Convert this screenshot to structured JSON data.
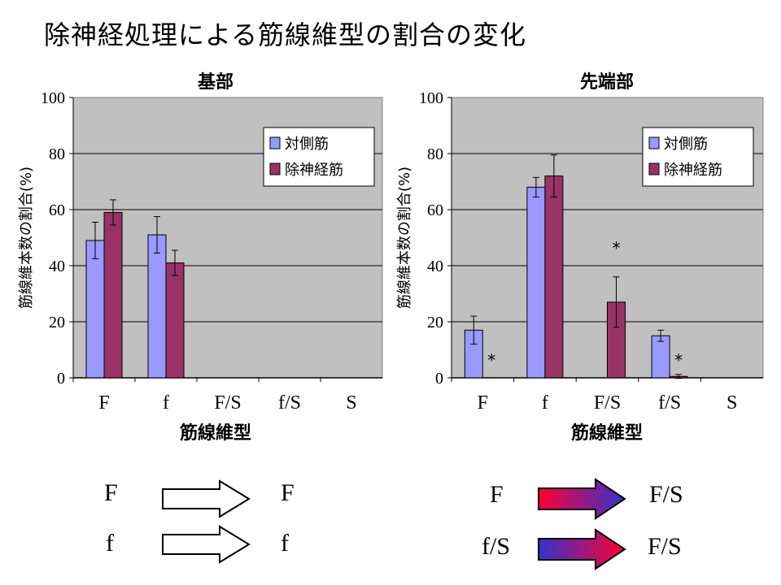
{
  "title": "除神経処理による筋線維型の割合の変化",
  "colors": {
    "contra": "#9999ff",
    "denerv": "#993366",
    "plot_bg": "#c0c0c0",
    "grid": "#000000"
  },
  "chart_data": [
    {
      "type": "bar",
      "title": "基部",
      "xlabel": "筋線維型",
      "ylabel": "筋線維本数の割合(%)",
      "ylim": [
        0,
        100
      ],
      "yticks": [
        "0",
        "20",
        "40",
        "60",
        "80",
        "100"
      ],
      "categories": [
        "F",
        "f",
        "F/S",
        "f/S",
        "S"
      ],
      "legend_position": "top-right",
      "series": [
        {
          "name": "対側筋",
          "color_key": "contra",
          "values": [
            49,
            51,
            0,
            0,
            0
          ],
          "err": [
            6.5,
            6.5,
            0,
            0,
            0
          ]
        },
        {
          "name": "除神経筋",
          "color_key": "denerv",
          "values": [
            59,
            41,
            0,
            0,
            0
          ],
          "err": [
            4.5,
            4.5,
            0,
            0,
            0
          ]
        }
      ],
      "annotations": []
    },
    {
      "type": "bar",
      "title": "先端部",
      "xlabel": "筋線維型",
      "ylabel": "筋線維本数の割合(%)",
      "ylim": [
        0,
        100
      ],
      "yticks": [
        "0",
        "20",
        "40",
        "60",
        "80",
        "100"
      ],
      "categories": [
        "F",
        "f",
        "F/S",
        "f/S",
        "S"
      ],
      "legend_position": "top-right",
      "series": [
        {
          "name": "対側筋",
          "color_key": "contra",
          "values": [
            17,
            68,
            0,
            15,
            0
          ],
          "err": [
            5,
            3.5,
            0,
            2,
            0
          ]
        },
        {
          "name": "除神経筋",
          "color_key": "denerv",
          "values": [
            0,
            72,
            27,
            0.5,
            0
          ],
          "err": [
            0,
            7.5,
            9,
            0.7,
            0
          ]
        }
      ],
      "annotations": [
        {
          "text": "*",
          "category": 0,
          "series": 1,
          "y": 6
        },
        {
          "text": "*",
          "category": 2,
          "series": 1,
          "y": 46
        },
        {
          "text": "*",
          "category": 3,
          "series": 1,
          "y": 6
        }
      ]
    }
  ],
  "transitions": [
    {
      "from": "F",
      "to": "F",
      "style": "outline"
    },
    {
      "from": "f",
      "to": "f",
      "style": "outline"
    },
    {
      "from": "F",
      "to": "F/S",
      "style": "red-to-blue"
    },
    {
      "from": "f/S",
      "to": "F/S",
      "style": "blue-to-red"
    }
  ]
}
